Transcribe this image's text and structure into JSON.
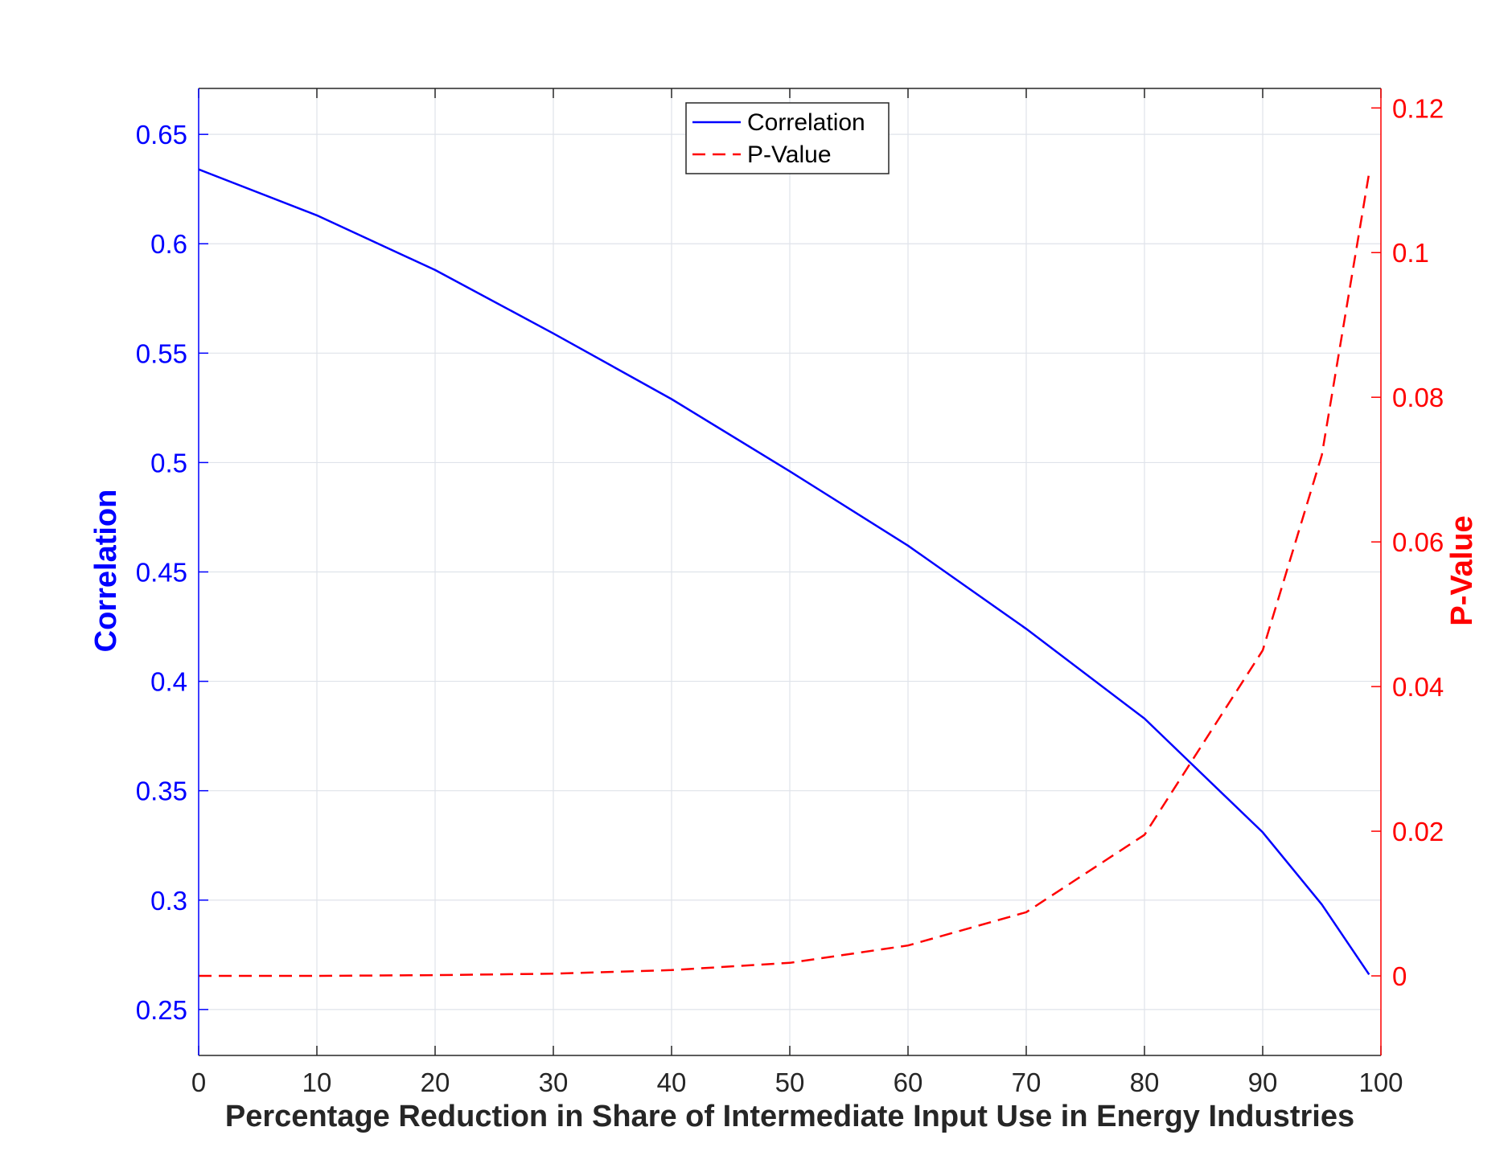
{
  "chart_data": {
    "type": "line",
    "title": "",
    "xlabel": "Percentage Reduction in Share of Intermediate Input Use in Energy Industries",
    "ylabel_left": "Correlation",
    "ylabel_right": "P-Value",
    "xlim": [
      0,
      100
    ],
    "ylim_left": [
      0.229,
      0.671
    ],
    "ylim_right": [
      -0.011,
      0.1227
    ],
    "x_ticks": [
      "0",
      "10",
      "20",
      "30",
      "40",
      "50",
      "60",
      "70",
      "80",
      "90",
      "100"
    ],
    "y_left_ticks": [
      "0.25",
      "0.3",
      "0.35",
      "0.4",
      "0.45",
      "0.5",
      "0.55",
      "0.6",
      "0.65"
    ],
    "y_right_ticks": [
      "0",
      "0.02",
      "0.04",
      "0.06",
      "0.08",
      "0.1",
      "0.12"
    ],
    "grid": true,
    "legend_position": "top-center",
    "series": [
      {
        "name": "Correlation",
        "axis": "left",
        "color": "#0000ff",
        "style": "solid",
        "x": [
          0,
          10,
          20,
          30,
          40,
          50,
          60,
          70,
          80,
          90,
          95,
          99
        ],
        "y": [
          0.634,
          0.613,
          0.588,
          0.559,
          0.529,
          0.496,
          0.462,
          0.424,
          0.383,
          0.331,
          0.298,
          0.266
        ]
      },
      {
        "name": "P-Value",
        "axis": "right",
        "color": "#ff0000",
        "style": "dashed",
        "x": [
          0,
          10,
          20,
          30,
          40,
          50,
          60,
          70,
          80,
          90,
          95,
          99
        ],
        "y": [
          0.0,
          0.0,
          0.0001,
          0.0003,
          0.0008,
          0.0018,
          0.0042,
          0.0088,
          0.0195,
          0.045,
          0.072,
          0.111
        ]
      }
    ]
  }
}
